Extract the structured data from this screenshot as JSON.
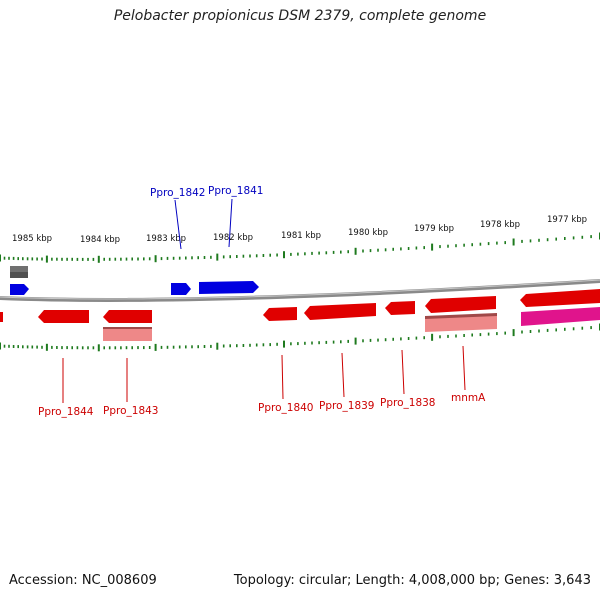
{
  "title": "Pelobacter propionicus DSM 2379, complete genome",
  "accession": "Accession: NC_008609",
  "summary": "Topology: circular; Length: 4,008,000 bp; Genes: 3,643",
  "colors": {
    "backbone": "#8a8a8a",
    "tick": "#1e7a1e",
    "forward_gene": "#0000e0",
    "reverse_gene": "#e00000",
    "reverse_gene_light": "#ee8888",
    "pseudo": "#707070",
    "pink": "#e0148c",
    "label_forward": "#0000c0",
    "label_reverse": "#cc0000"
  },
  "scale": {
    "unit": "kbp",
    "ticks": [
      {
        "label": "1985 kbp"
      },
      {
        "label": "1984 kbp"
      },
      {
        "label": "1983 kbp"
      },
      {
        "label": "1982 kbp"
      },
      {
        "label": "1981 kbp"
      },
      {
        "label": "1980 kbp"
      },
      {
        "label": "1979 kbp"
      },
      {
        "label": "1978 kbp"
      },
      {
        "label": "1977 kbp"
      }
    ]
  },
  "gene_labels": {
    "forward": [
      "Ppro_1842",
      "Ppro_1841"
    ],
    "reverse": [
      "Ppro_1844",
      "Ppro_1843",
      "Ppro_1840",
      "Ppro_1839",
      "Ppro_1838",
      "mnmA"
    ]
  }
}
